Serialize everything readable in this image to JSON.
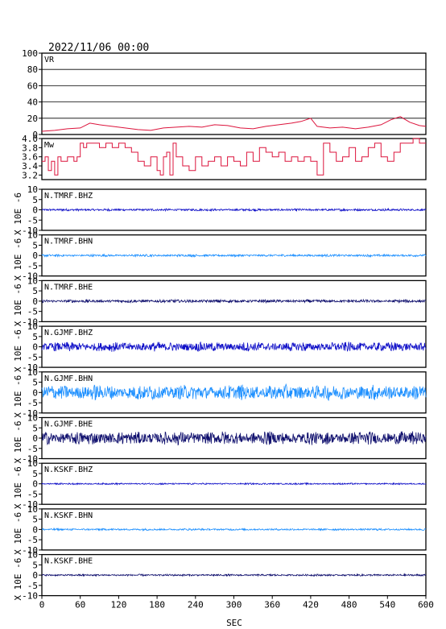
{
  "header": {
    "datetime": "2022/11/06 00:00"
  },
  "chart_data": {
    "type": "line",
    "xlabel": "SEC",
    "xlim": [
      0,
      600
    ],
    "xticks": [
      0,
      60,
      120,
      180,
      240,
      300,
      360,
      420,
      480,
      540,
      600
    ],
    "colors": {
      "vr": "#dc143c",
      "mw": "#dc143c",
      "bhz": "#1010c8",
      "bhn": "#1e90ff",
      "bhe": "#10106e",
      "axis": "#000000"
    },
    "vr": {
      "label": "VR",
      "ylim": [
        0,
        100
      ],
      "yticks": [
        0,
        20,
        40,
        60,
        80,
        100
      ],
      "x": [
        0,
        20,
        40,
        60,
        75,
        90,
        110,
        130,
        150,
        170,
        190,
        210,
        230,
        250,
        270,
        290,
        310,
        330,
        350,
        370,
        390,
        405,
        420,
        430,
        450,
        470,
        490,
        510,
        530,
        545,
        560,
        575,
        590,
        600
      ],
      "values": [
        4,
        5,
        7,
        8,
        14,
        12,
        10,
        8,
        6,
        5,
        8,
        9,
        10,
        9,
        12,
        11,
        8,
        7,
        10,
        12,
        14,
        16,
        20,
        10,
        8,
        9,
        7,
        9,
        12,
        18,
        22,
        15,
        11,
        10
      ]
    },
    "mw": {
      "label": "Mw",
      "ylim": [
        3.1,
        4.0
      ],
      "yticks": [
        "3.2",
        "3.4",
        "3.6",
        "3.8",
        "4.0"
      ],
      "x": [
        0,
        5,
        10,
        15,
        20,
        25,
        30,
        40,
        50,
        55,
        60,
        65,
        70,
        80,
        90,
        100,
        110,
        120,
        130,
        140,
        150,
        160,
        170,
        180,
        185,
        190,
        195,
        200,
        205,
        210,
        220,
        230,
        240,
        250,
        260,
        270,
        280,
        290,
        300,
        310,
        320,
        330,
        340,
        350,
        360,
        370,
        380,
        390,
        400,
        410,
        420,
        430,
        440,
        450,
        460,
        470,
        480,
        490,
        500,
        510,
        520,
        530,
        540,
        550,
        560,
        570,
        580,
        590,
        600
      ],
      "values": [
        3.5,
        3.6,
        3.3,
        3.5,
        3.2,
        3.6,
        3.5,
        3.6,
        3.5,
        3.6,
        3.9,
        3.8,
        3.9,
        3.9,
        3.8,
        3.9,
        3.8,
        3.9,
        3.8,
        3.7,
        3.5,
        3.4,
        3.6,
        3.3,
        3.2,
        3.6,
        3.7,
        3.2,
        3.9,
        3.6,
        3.4,
        3.3,
        3.6,
        3.4,
        3.5,
        3.6,
        3.4,
        3.6,
        3.5,
        3.4,
        3.7,
        3.5,
        3.8,
        3.7,
        3.6,
        3.7,
        3.5,
        3.6,
        3.5,
        3.6,
        3.5,
        3.2,
        3.9,
        3.7,
        3.5,
        3.6,
        3.8,
        3.5,
        3.6,
        3.8,
        3.9,
        3.6,
        3.5,
        3.7,
        3.9,
        3.9,
        4.0,
        3.9,
        3.9
      ]
    },
    "waveforms": {
      "ylim": [
        -10,
        10
      ],
      "yticks": [
        -10,
        -5,
        0,
        5,
        10
      ],
      "ylabel": "X 10E -6",
      "traces": [
        {
          "label": "N.TMRF.BHZ",
          "component": "bhz",
          "amplitude": 0.6
        },
        {
          "label": "N.TMRF.BHN",
          "component": "bhn",
          "amplitude": 0.6
        },
        {
          "label": "N.TMRF.BHE",
          "component": "bhe",
          "amplitude": 0.8
        },
        {
          "label": "N.GJMF.BHZ",
          "component": "bhz",
          "amplitude": 2.5
        },
        {
          "label": "N.GJMF.BHN",
          "component": "bhn",
          "amplitude": 4.0
        },
        {
          "label": "N.GJMF.BHE",
          "component": "bhe",
          "amplitude": 3.5
        },
        {
          "label": "N.KSKF.BHZ",
          "component": "bhz",
          "amplitude": 0.4
        },
        {
          "label": "N.KSKF.BHN",
          "component": "bhn",
          "amplitude": 0.5
        },
        {
          "label": "N.KSKF.BHE",
          "component": "bhe",
          "amplitude": 0.5
        }
      ]
    }
  }
}
